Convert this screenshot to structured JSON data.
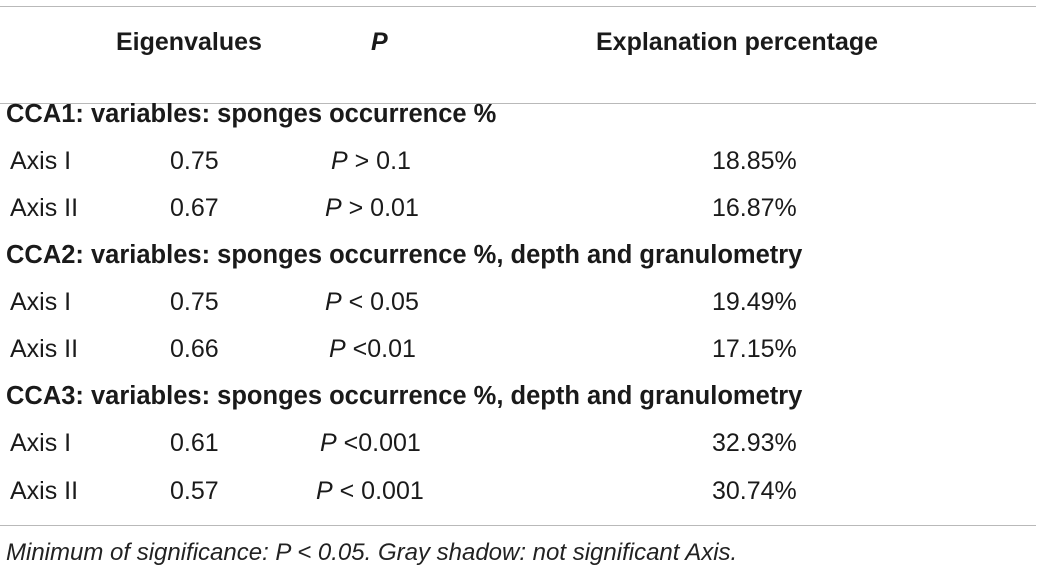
{
  "header": {
    "eigenvalues": "Eigenvalues",
    "p": "P",
    "explanation": "Explanation percentage"
  },
  "groups": [
    {
      "title": "CCA1: variables: sponges occurrence %",
      "rows": [
        {
          "axis": "Axis I",
          "eigen": "0.75",
          "p_label": "P",
          "p_value": "> 0.1",
          "pct": "18.85%"
        },
        {
          "axis": "Axis II",
          "eigen": "0.67",
          "p_label": "P",
          "p_value": "> 0.01",
          "pct": "16.87%"
        }
      ]
    },
    {
      "title": "CCA2: variables: sponges occurrence %, depth and granulometry",
      "rows": [
        {
          "axis": "Axis I",
          "eigen": "0.75",
          "p_label": "P",
          "p_value": "< 0.05",
          "pct": "19.49%"
        },
        {
          "axis": "Axis II",
          "eigen": "0.66",
          "p_label": "P",
          "p_value": "<0.01",
          "pct": "17.15%"
        }
      ]
    },
    {
      "title": "CCA3: variables: sponges occurrence %, depth and granulometry",
      "rows": [
        {
          "axis": "Axis I",
          "eigen": "0.61",
          "p_label": "P",
          "p_value": "<0.001",
          "pct": "32.93%"
        },
        {
          "axis": "Axis II",
          "eigen": "0.57",
          "p_label": "P",
          "p_value": "< 0.001",
          "pct": "30.74%"
        }
      ]
    }
  ],
  "footnote": "Minimum of significance: P < 0.05. Gray shadow: not significant Axis."
}
